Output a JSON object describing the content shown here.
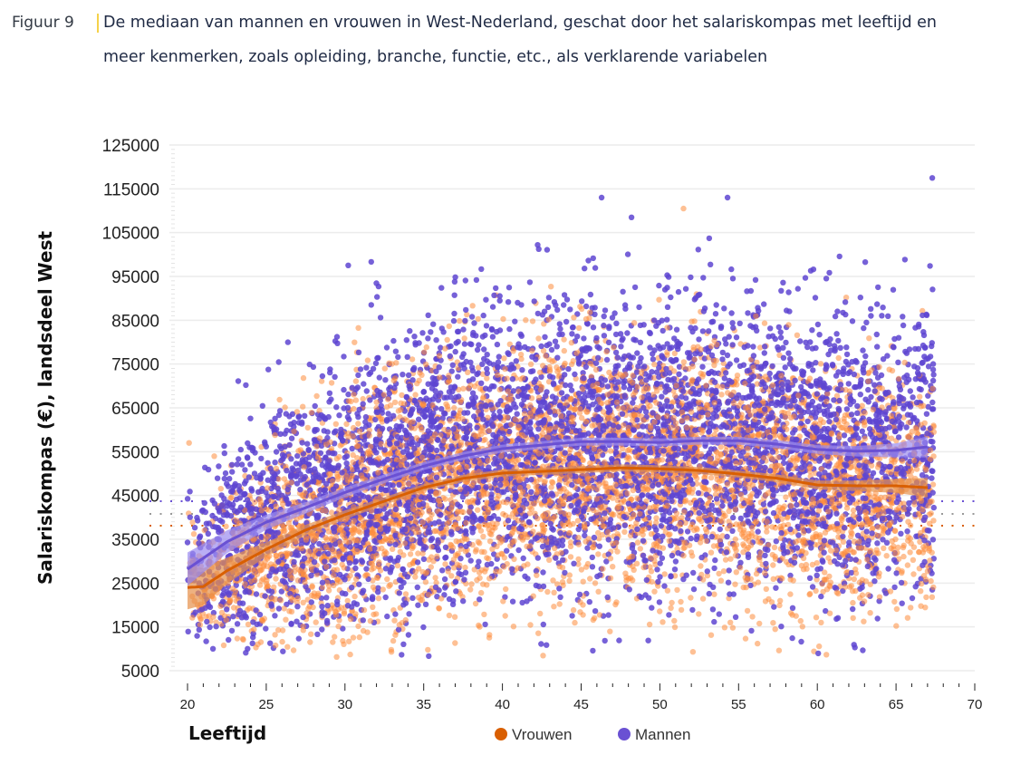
{
  "caption": {
    "figure_label": "Figuur 9",
    "title": "De mediaan van mannen en vrouwen in West-Nederland, geschat door het salariskompas met leeftijd en meer kenmerken, zoals opleiding, branche, functie, etc., als verklarende variabelen"
  },
  "chart_data": {
    "type": "scatter",
    "title": "De mediaan van mannen en vrouwen in West-Nederland, geschat door het salariskompas met leeftijd en meer kenmerken, zoals opleiding, branche, functie, etc., als verklarende variabelen",
    "xlabel": "Leeftijd",
    "ylabel": "Salariskompas (€), landsdeel West",
    "xlim": [
      20,
      70
    ],
    "ylim": [
      5000,
      125000
    ],
    "x_ticks": [
      20,
      25,
      30,
      35,
      40,
      45,
      50,
      55,
      60,
      65,
      70
    ],
    "y_ticks": [
      125000,
      115000,
      105000,
      95000,
      85000,
      75000,
      65000,
      55000,
      45000,
      35000,
      25000,
      15000,
      5000
    ],
    "grid": true,
    "legend_position": "bottom-center",
    "series": [
      {
        "name": "Vrouwen",
        "color": "#d95f02",
        "point_color": "#fd8d3c",
        "band_color": "#e6904a",
        "trend": {
          "x": [
            20,
            21,
            22.5,
            25,
            27.5,
            30,
            32.5,
            35,
            37.5,
            40,
            42.5,
            45,
            47.5,
            50,
            52.5,
            55,
            57.5,
            60,
            62.5,
            65,
            67
          ],
          "y": [
            24000,
            24200,
            27800,
            32700,
            37100,
            40600,
            43700,
            46800,
            48900,
            50100,
            50500,
            50900,
            51300,
            51100,
            50700,
            49900,
            48900,
            47400,
            47200,
            47200,
            46800
          ],
          "band_halfwidth": [
            5000,
            4200,
            3000,
            1600,
            1200,
            1000,
            900,
            800,
            800,
            800,
            800,
            800,
            800,
            800,
            800,
            800,
            900,
            1000,
            1200,
            1600,
            2200
          ]
        },
        "reference_line": 38100,
        "scatter_spread": 14000
      },
      {
        "name": "Mannen",
        "color": "#6a51d3",
        "point_color": "#5e45d1",
        "band_color": "#9b8cf0",
        "trend": {
          "x": [
            20,
            22.5,
            25,
            27.5,
            30,
            32.5,
            35,
            37.5,
            40,
            42.5,
            45,
            47.5,
            50,
            52.5,
            55,
            57.5,
            60,
            62.5,
            65,
            67
          ],
          "y": [
            28200,
            34400,
            38900,
            42200,
            45700,
            48800,
            51700,
            54000,
            55700,
            56500,
            57300,
            57300,
            57100,
            57500,
            57500,
            56700,
            55500,
            55100,
            55300,
            56100
          ],
          "band_halfwidth": [
            3800,
            2600,
            1700,
            1300,
            1100,
            1000,
            900,
            900,
            900,
            900,
            900,
            900,
            900,
            900,
            900,
            900,
            1000,
            1200,
            1600,
            2400
          ]
        },
        "reference_line": 43700,
        "scatter_spread": 16000
      }
    ],
    "overall_reference_line": 40800,
    "outliers": [
      {
        "series": "Mannen",
        "x": 67.3,
        "y": 117500
      },
      {
        "series": "Mannen",
        "x": 46.3,
        "y": 113000
      },
      {
        "series": "Mannen",
        "x": 54.3,
        "y": 113000
      },
      {
        "series": "Mannen",
        "x": 48.2,
        "y": 108500
      },
      {
        "series": "Vrouwen",
        "x": 51.5,
        "y": 110500
      },
      {
        "series": "Vrouwen",
        "x": 20.1,
        "y": 57000
      }
    ]
  }
}
